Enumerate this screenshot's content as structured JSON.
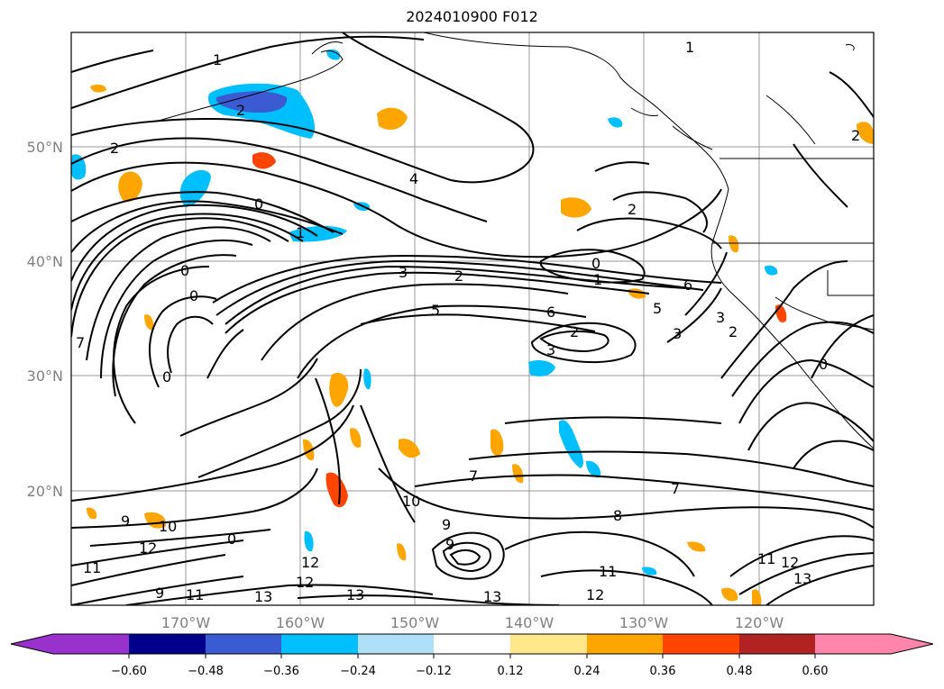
{
  "title": "2024010900 F012",
  "latitude_labels": [
    "50°N",
    "40°N",
    "30°N",
    "20°N"
  ],
  "longitude_labels": [
    "170°W",
    "160°W",
    "150°W",
    "140°W",
    "130°W",
    "120°W"
  ],
  "colorbar": {
    "tick_labels": [
      "−0.60",
      "−0.48",
      "−0.36",
      "−0.24",
      "−0.12",
      "0.12",
      "0.24",
      "0.36",
      "0.48",
      "0.60"
    ],
    "colors": [
      "#9932cc",
      "#00008b",
      "#3a5bd1",
      "#00bfff",
      "#b0e0f8",
      "#ffffff",
      "#ffe88c",
      "#ffa500",
      "#ff4500",
      "#b22222",
      "#ff85ad"
    ]
  },
  "contour_labels": [
    {
      "text": "1"
    },
    {
      "text": "1"
    },
    {
      "text": "2"
    },
    {
      "text": "2"
    },
    {
      "text": "2"
    },
    {
      "text": "4"
    },
    {
      "text": "0"
    },
    {
      "text": "1"
    },
    {
      "text": "2"
    },
    {
      "text": "0"
    },
    {
      "text": "0"
    },
    {
      "text": "3"
    },
    {
      "text": "2"
    },
    {
      "text": "1"
    },
    {
      "text": "5"
    },
    {
      "text": "6"
    },
    {
      "text": "6"
    },
    {
      "text": "5"
    },
    {
      "text": "2"
    },
    {
      "text": "3"
    },
    {
      "text": "3"
    },
    {
      "text": "2"
    },
    {
      "text": "3"
    },
    {
      "text": "0"
    },
    {
      "text": "0"
    },
    {
      "text": "7"
    },
    {
      "text": "7"
    },
    {
      "text": "8"
    },
    {
      "text": "10"
    },
    {
      "text": "9"
    },
    {
      "text": "9"
    },
    {
      "text": "10"
    },
    {
      "text": "12"
    },
    {
      "text": "11"
    },
    {
      "text": "9"
    },
    {
      "text": "12"
    },
    {
      "text": "11"
    },
    {
      "text": "13"
    },
    {
      "text": "12"
    },
    {
      "text": "13"
    },
    {
      "text": "13"
    },
    {
      "text": "11"
    },
    {
      "text": "12"
    },
    {
      "text": "11"
    },
    {
      "text": "12"
    },
    {
      "text": "13"
    },
    {
      "text": "0"
    },
    {
      "text": "9"
    },
    {
      "text": "7"
    },
    {
      "text": "0"
    }
  ]
}
